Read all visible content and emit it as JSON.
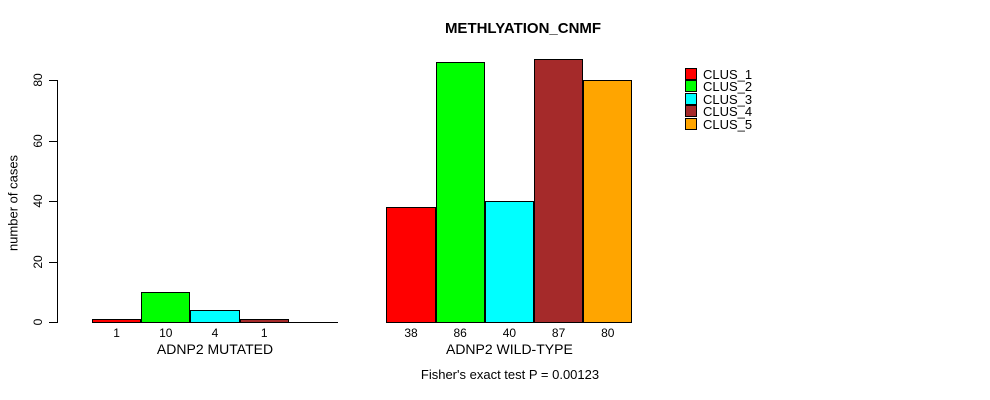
{
  "chart_data": {
    "type": "bar",
    "title": "METHLYATION_CNMF",
    "ylabel": "number of cases",
    "ylim": [
      0,
      80
    ],
    "yticks": [
      0,
      20,
      40,
      60,
      80
    ],
    "grid": false,
    "legend_position": "right",
    "series": [
      {
        "name": "CLUS_1",
        "color": "#FF0000"
      },
      {
        "name": "CLUS_2",
        "color": "#00FF00"
      },
      {
        "name": "CLUS_3",
        "color": "#00FFFF"
      },
      {
        "name": "CLUS_4",
        "color": "#A52A2A"
      },
      {
        "name": "CLUS_5",
        "color": "#FFA500"
      }
    ],
    "groups": [
      {
        "label": "ADNP2 MUTATED",
        "values": [
          1,
          10,
          4,
          1,
          0
        ]
      },
      {
        "label": "ADNP2 WILD-TYPE",
        "values": [
          38,
          86,
          40,
          87,
          80
        ]
      }
    ],
    "bar_value_labels": true,
    "annotation": "Fisher's exact test P = 0.00123",
    "background": "#FFFFFF"
  }
}
